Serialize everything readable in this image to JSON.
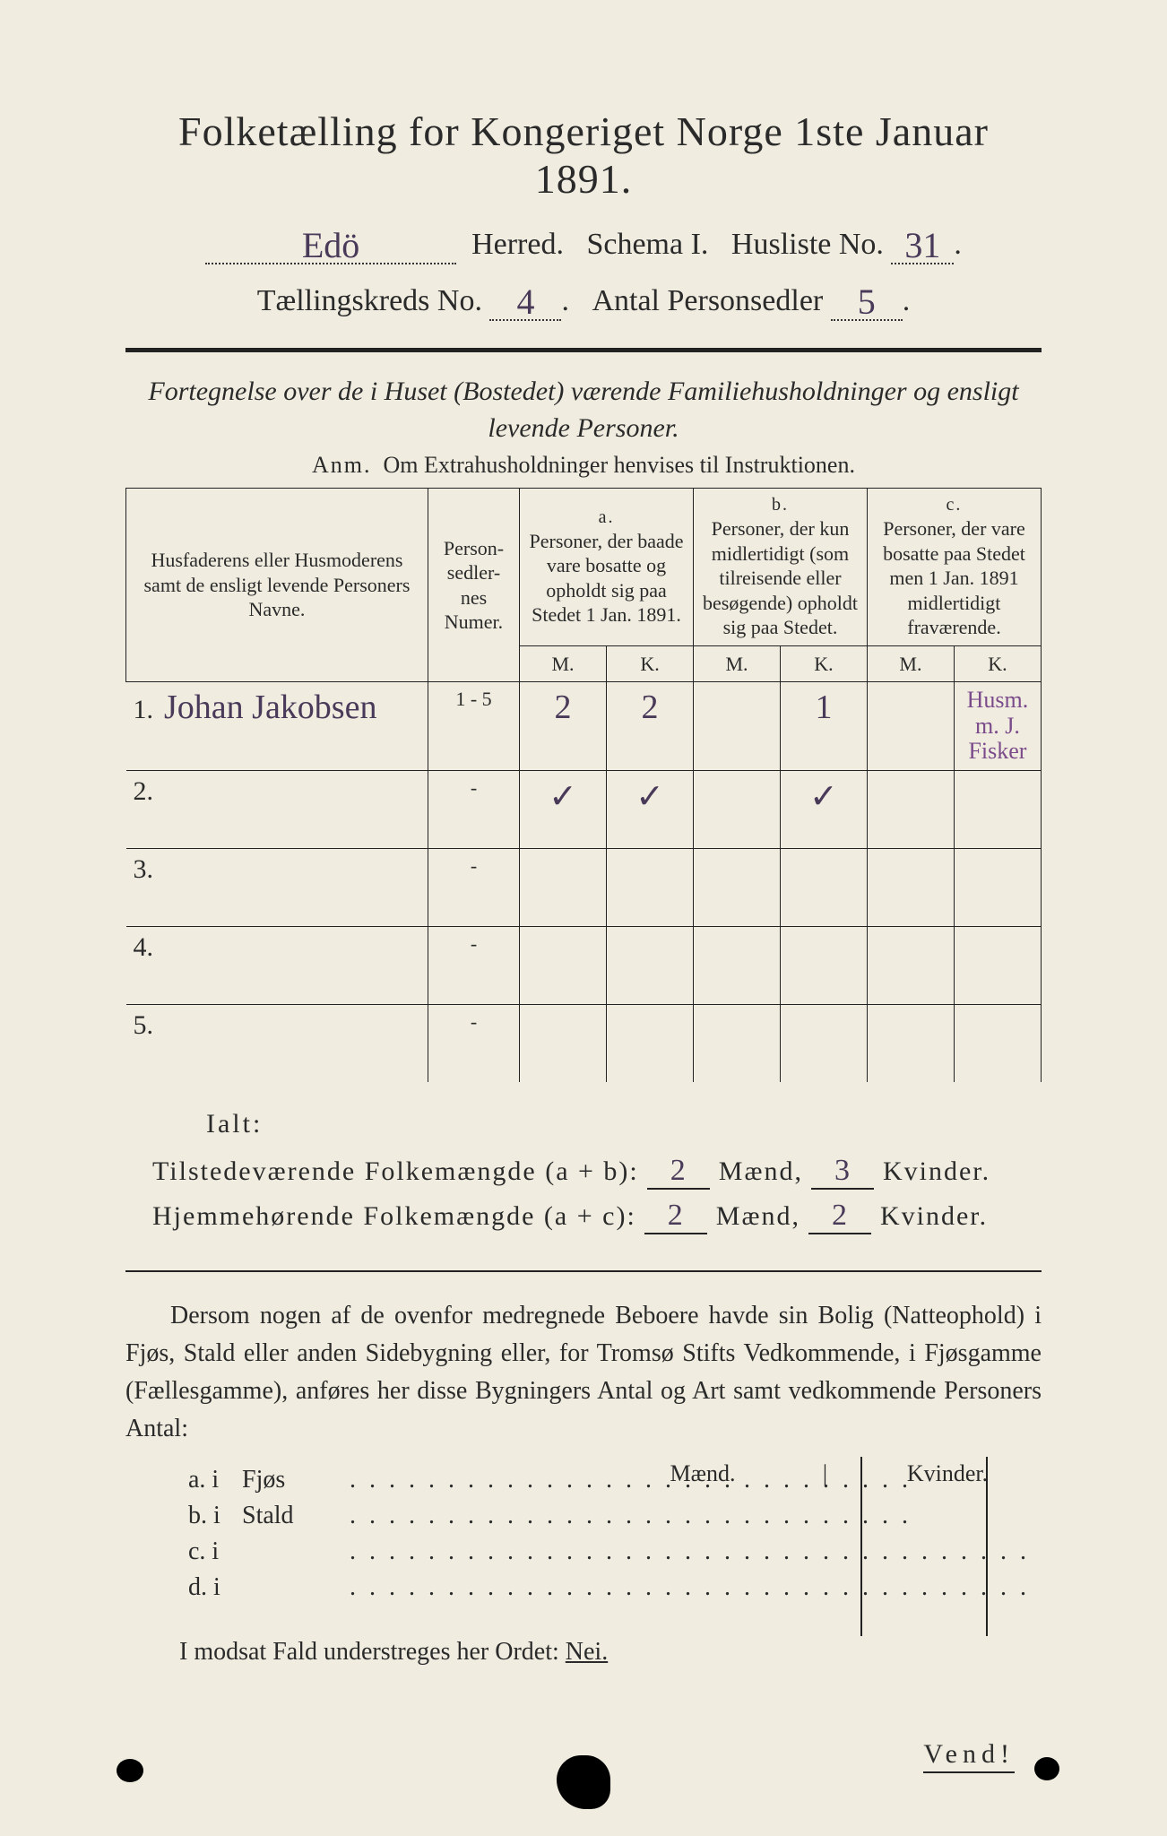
{
  "colors": {
    "page_bg": "#f0ede0",
    "ink": "#2a2a2a",
    "handwriting": "#4a3a5a",
    "purple_ink": "#7a4a8a",
    "outer_bg": "#3a3a3a"
  },
  "title": "Folketælling for Kongeriget Norge 1ste Januar 1891.",
  "header": {
    "herred_value": "Edö",
    "herred_label": "Herred.",
    "schema_label": "Schema I.",
    "husliste_label": "Husliste No.",
    "husliste_value": "31",
    "kreds_label": "Tællingskreds No.",
    "kreds_value": "4",
    "antal_label": "Antal Personsedler",
    "antal_value": "5"
  },
  "subtitle_line1": "Fortegnelse over de i Huset (Bostedet) værende Familiehusholdninger og ensligt",
  "subtitle_line2": "levende Personer.",
  "anm_lead": "Anm.",
  "anm_text": "Om Extrahusholdninger henvises til Instruktionen.",
  "table": {
    "col_name": "Husfaderens eller Husmoderens samt de ensligt levende Personers Navne.",
    "col_num": "Person-\nsedler-\nnes\nNumer.",
    "group_a_tag": "a.",
    "group_a": "Personer, der baade vare bosatte og opholdt sig paa Stedet 1 Jan. 1891.",
    "group_b_tag": "b.",
    "group_b": "Personer, der kun midlertidigt (som tilreisende eller besøgende) opholdt sig paa Stedet.",
    "group_c_tag": "c.",
    "group_c": "Personer, der vare bosatte paa Stedet men 1 Jan. 1891 midlertidigt fraværende.",
    "M": "M.",
    "K": "K.",
    "rows": [
      {
        "n": "1.",
        "name": "Johan Jakobsen",
        "numer": "1 - 5",
        "aM": "2",
        "aK": "2",
        "bM": "",
        "bK": "1",
        "cM": "",
        "cK": "",
        "note": "Husm. m. J.\nFisker"
      },
      {
        "n": "2.",
        "name": "",
        "numer": "-",
        "aM": "✓",
        "aK": "✓",
        "bM": "",
        "bK": "✓",
        "cM": "",
        "cK": "",
        "note": ""
      },
      {
        "n": "3.",
        "name": "",
        "numer": "-",
        "aM": "",
        "aK": "",
        "bM": "",
        "bK": "",
        "cM": "",
        "cK": "",
        "note": ""
      },
      {
        "n": "4.",
        "name": "",
        "numer": "-",
        "aM": "",
        "aK": "",
        "bM": "",
        "bK": "",
        "cM": "",
        "cK": "",
        "note": ""
      },
      {
        "n": "5.",
        "name": "",
        "numer": "-",
        "aM": "",
        "aK": "",
        "bM": "",
        "bK": "",
        "cM": "",
        "cK": "",
        "note": ""
      }
    ]
  },
  "ialt": "Ialt:",
  "sum1": {
    "label": "Tilstedeværende Folkemængde (a + b):",
    "m": "2",
    "m_label": "Mænd,",
    "k": "3",
    "k_label": "Kvinder."
  },
  "sum2": {
    "label": "Hjemmehørende Folkemængde (a + c):",
    "m": "2",
    "m_label": "Mænd,",
    "k": "2",
    "k_label": "Kvinder."
  },
  "para": "Dersom nogen af de ovenfor medregnede Beboere havde sin Bolig (Natteophold) i Fjøs, Stald eller anden Sidebygning eller, for Tromsø Stifts Vedkommende, i Fjøsgamme (Fællesgamme), anføres her disse Bygningers Antal og Art samt vedkommende Personers Antal:",
  "mkv": {
    "m": "Mænd.",
    "k": "Kvinder."
  },
  "abcd": [
    {
      "tag": "a.  i",
      "label": "Fjøs",
      "dots": ". . . . . . . . . . . . . . . . . . . . . . . . . . . . ."
    },
    {
      "tag": "b.  i",
      "label": "Stald",
      "dots": ". . . . . . . . . . . . . . . . . . . . . . . . . . . . ."
    },
    {
      "tag": "c.  i",
      "label": "",
      "dots": ". . . . . . . . . . . . . . . . . . . . . . . . . . . . . . . . . . ."
    },
    {
      "tag": "d.  i",
      "label": "",
      "dots": ". . . . . . . . . . . . . . . . . . . . . . . . . . . . . . . . . . ."
    }
  ],
  "nei_line_pre": "I modsat Fald understreges her Ordet: ",
  "nei_word": "Nei.",
  "vend": "Vend!"
}
